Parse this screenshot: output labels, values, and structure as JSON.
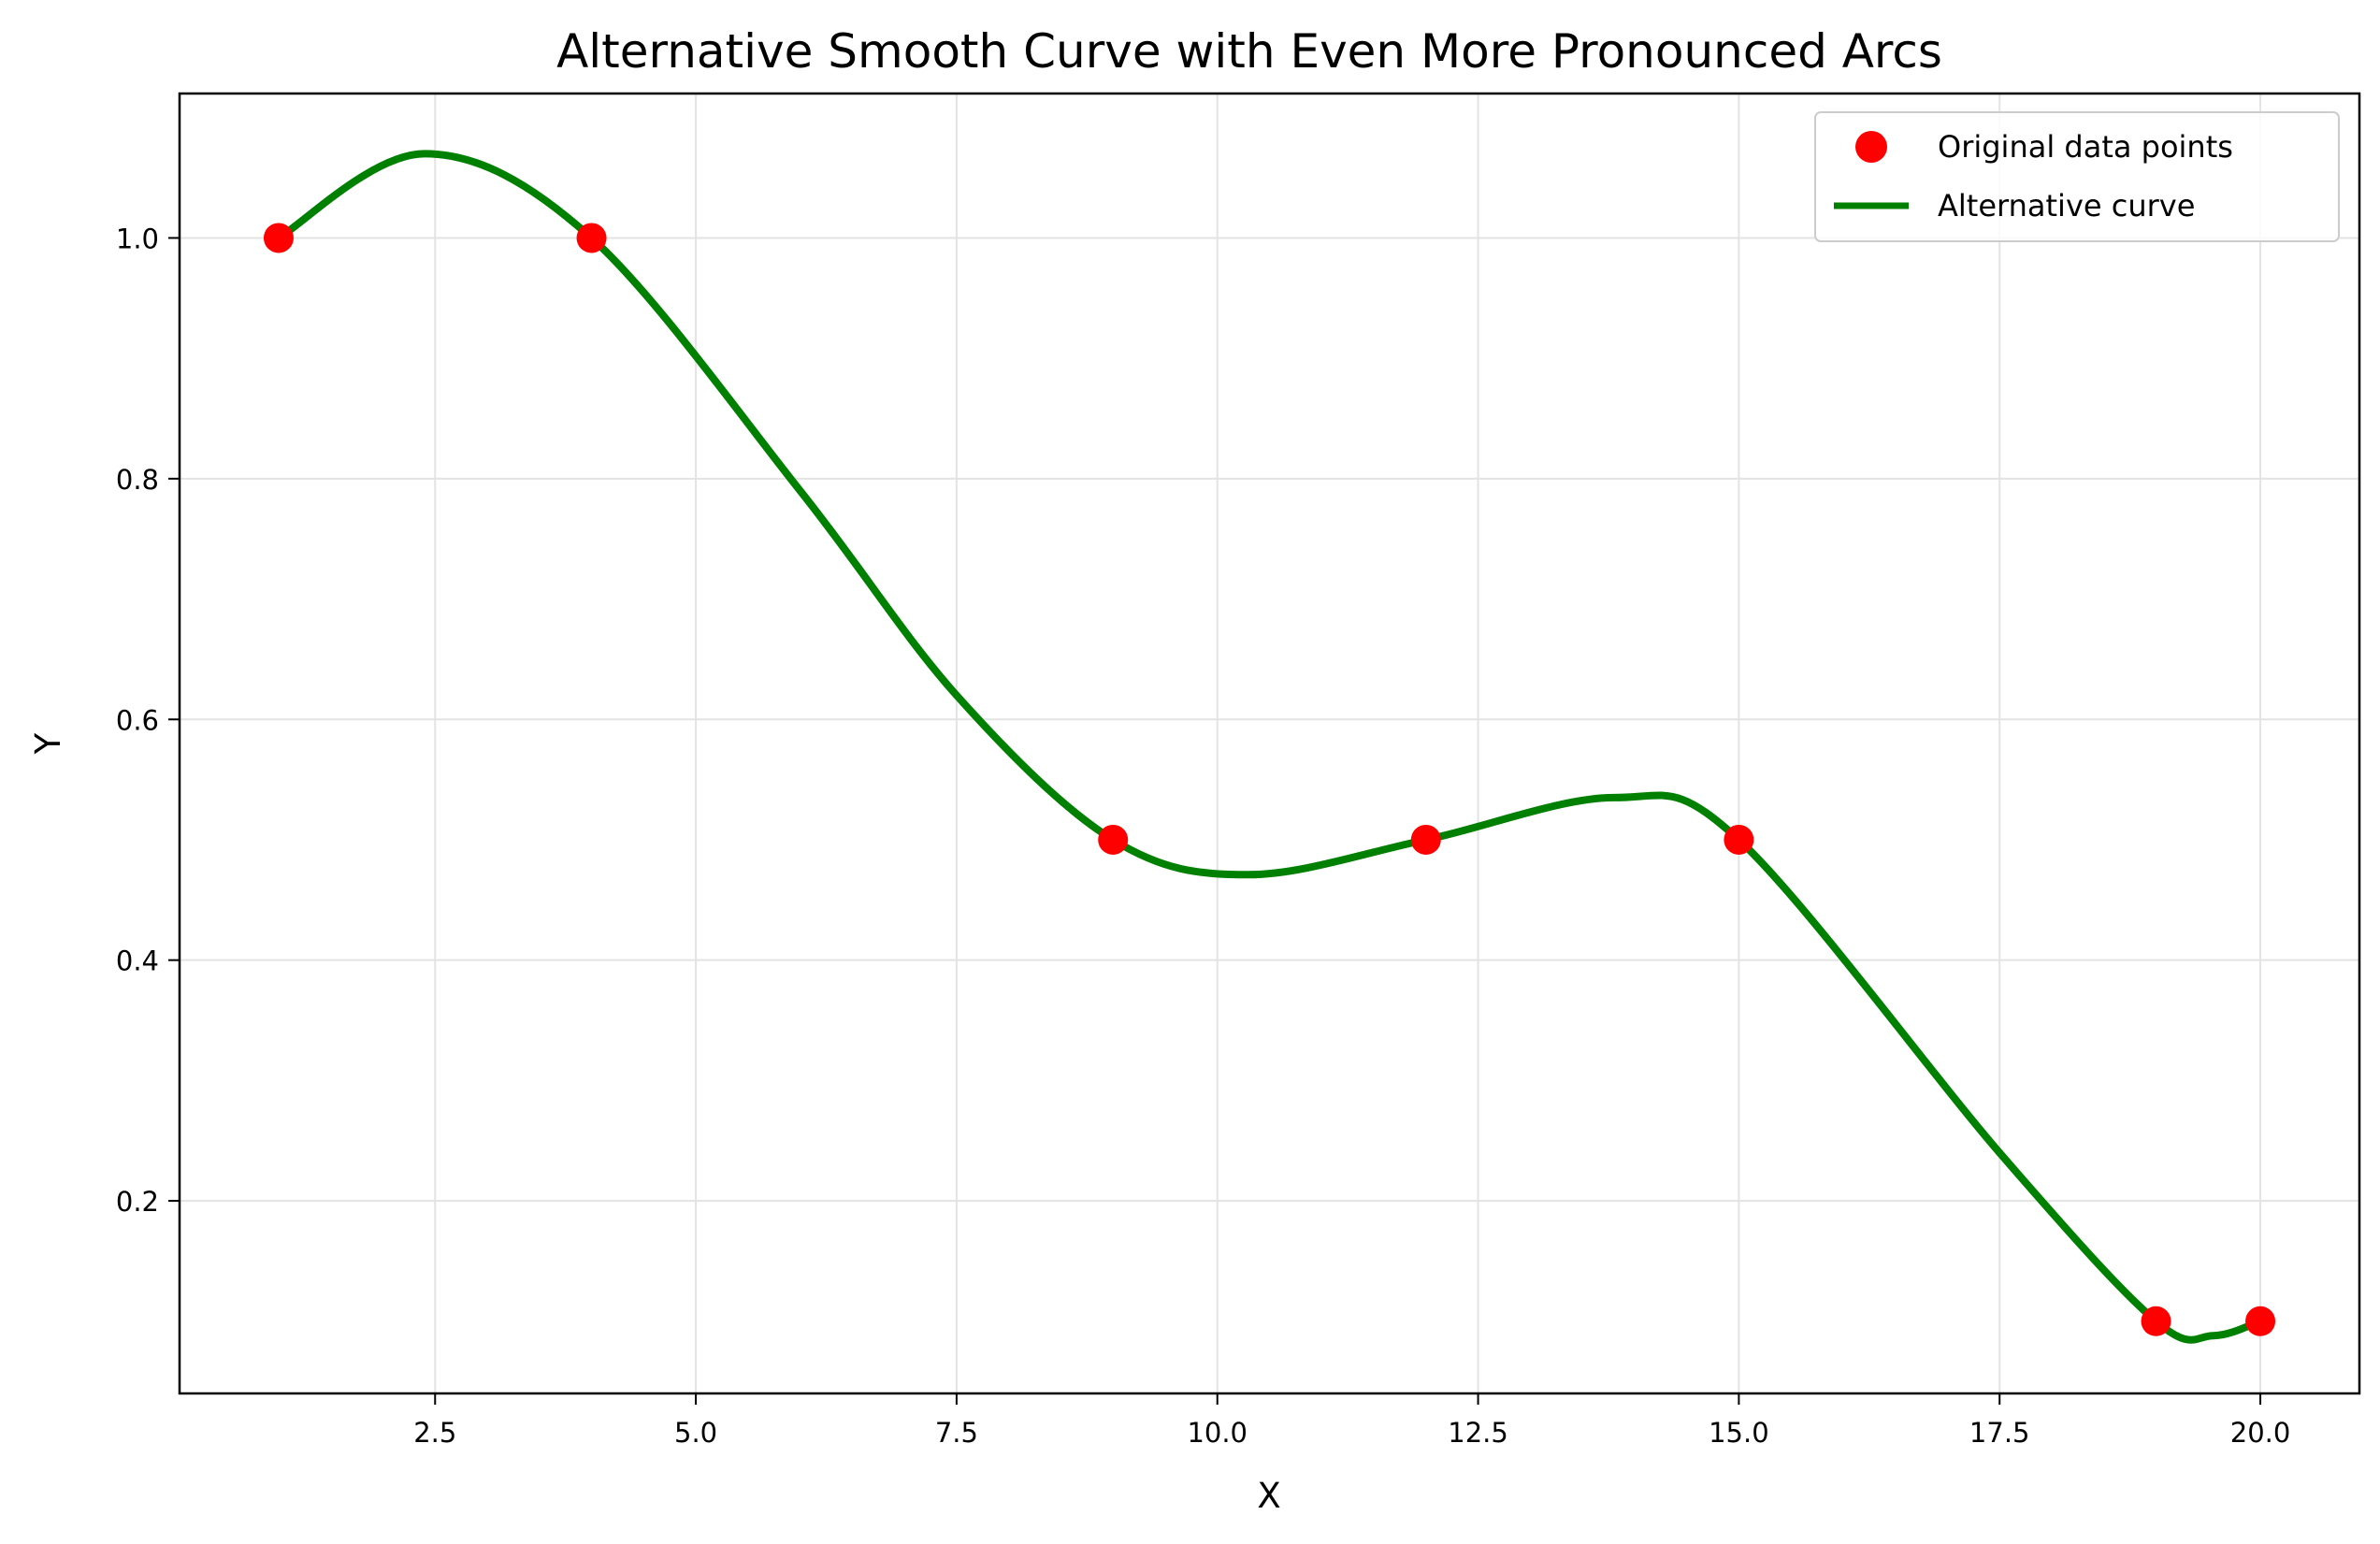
{
  "chart_data": {
    "type": "line",
    "title": "Alternative Smooth Curve with Even More Pronounced Arcs",
    "xlabel": "X",
    "ylabel": "Y",
    "xlim": [
      0.05,
      20.95
    ],
    "ylim": [
      0.04,
      1.12
    ],
    "grid": true,
    "legend_position": "top-right",
    "x_ticks": [
      2.5,
      5.0,
      7.5,
      10.0,
      12.5,
      15.0,
      17.5,
      20.0
    ],
    "x_tick_labels": [
      "2.5",
      "5.0",
      "7.5",
      "10.0",
      "12.5",
      "15.0",
      "17.5",
      "20.0"
    ],
    "y_ticks": [
      0.2,
      0.4,
      0.6,
      0.8,
      1.0
    ],
    "y_tick_labels": [
      "0.2",
      "0.4",
      "0.6",
      "0.8",
      "1.0"
    ],
    "series": [
      {
        "name": "Original data points",
        "style": "markers",
        "color": "#ff0000",
        "x": [
          1,
          4,
          9,
          12,
          15,
          19,
          20
        ],
        "y": [
          1.0,
          1.0,
          0.5,
          0.5,
          0.5,
          0.1,
          0.1
        ]
      },
      {
        "name": "Alternative curve",
        "style": "line",
        "color": "#008000",
        "x": [
          1,
          2.4,
          4,
          6,
          7.5,
          9,
          10.3,
          12,
          13.8,
          15,
          17.5,
          19,
          19.55,
          20
        ],
        "y": [
          1.0,
          1.07,
          1.0,
          0.79,
          0.62,
          0.5,
          0.471,
          0.5,
          0.535,
          0.5,
          0.24,
          0.1,
          0.088,
          0.1
        ]
      }
    ]
  }
}
